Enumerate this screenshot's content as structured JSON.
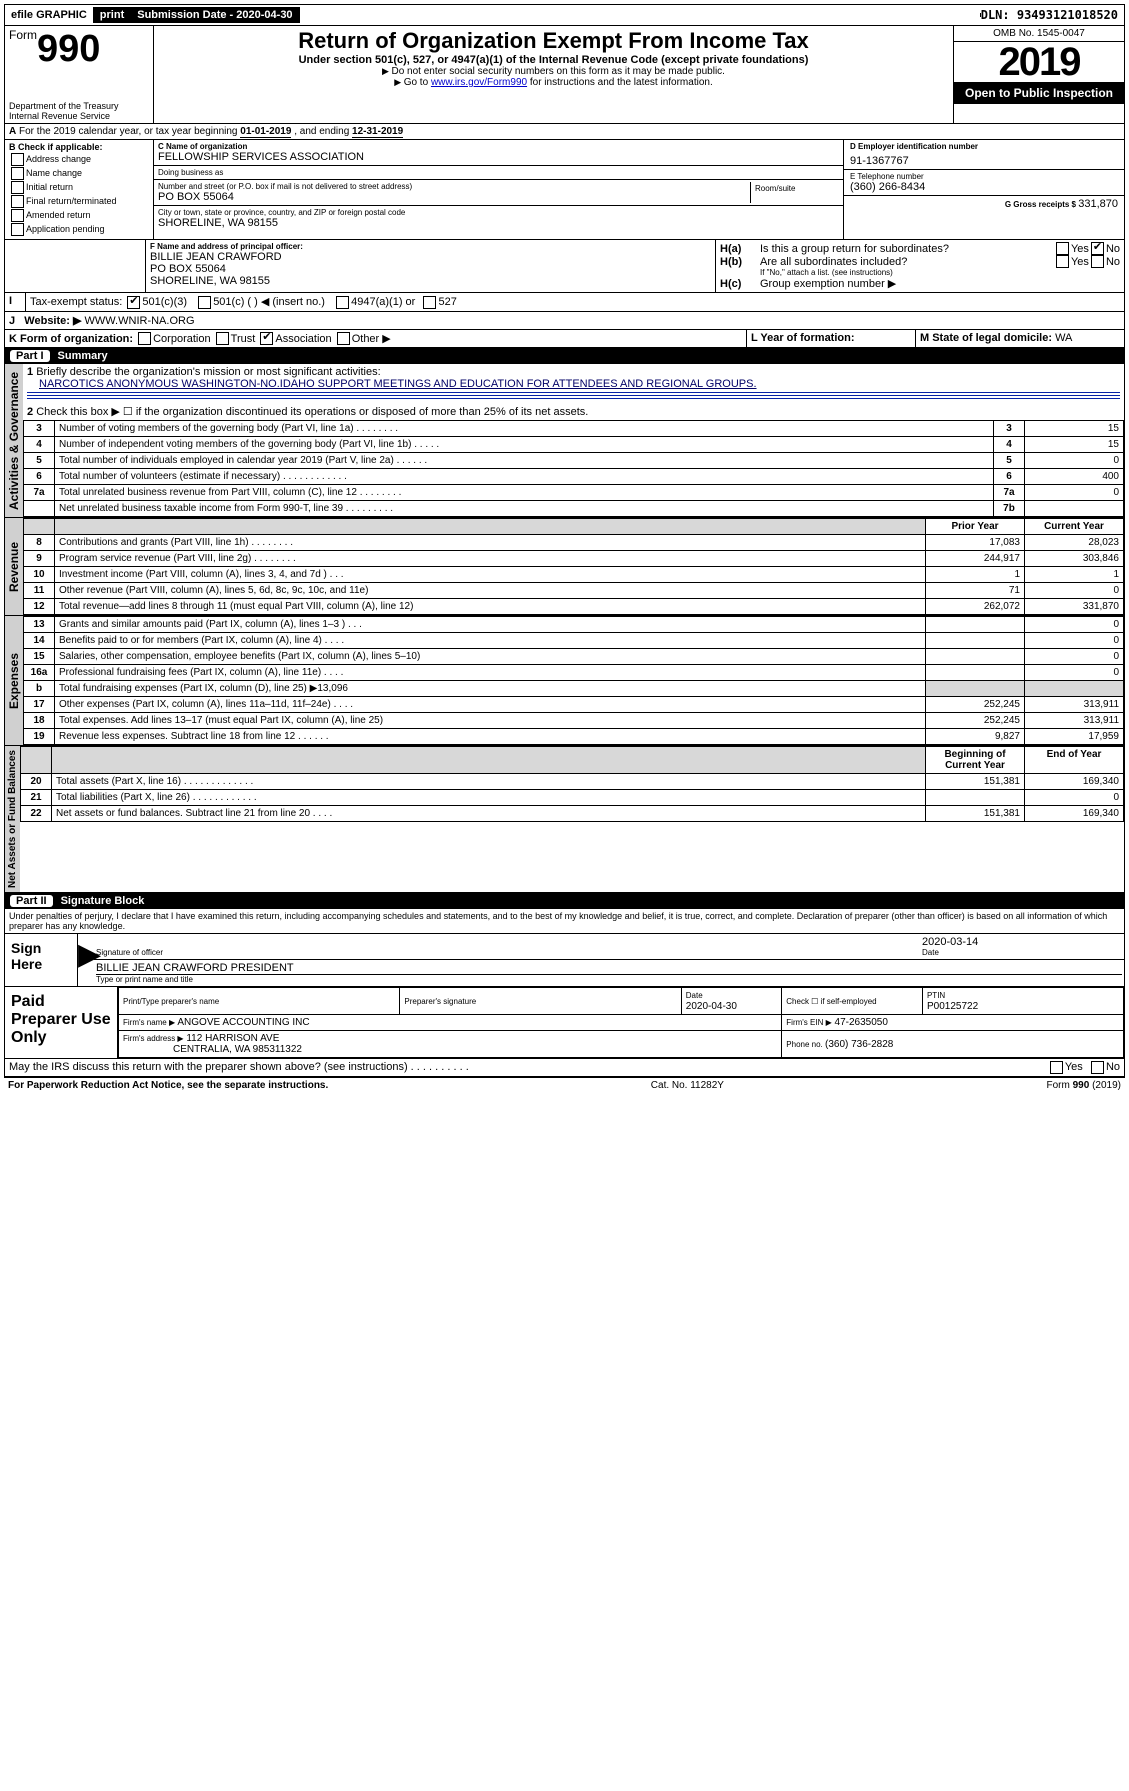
{
  "topbar": {
    "efile": "efile GRAPHIC",
    "print": "print",
    "sub_label": "Submission Date - ",
    "sub_date": "2020-04-30",
    "dln_label": "DLN: ",
    "dln": "93493121018520"
  },
  "header": {
    "form_word": "Form",
    "form_no": "990",
    "dept": "Department of the Treasury",
    "irs": "Internal Revenue Service",
    "title": "Return of Organization Exempt From Income Tax",
    "subtitle": "Under section 501(c), 527, or 4947(a)(1) of the Internal Revenue Code (except private foundations)",
    "note1": "Do not enter social security numbers on this form as it may be made public.",
    "note2_a": "Go to ",
    "note2_link": "www.irs.gov/Form990",
    "note2_b": " for instructions and the latest information.",
    "omb": "OMB No. 1545-0047",
    "year": "2019",
    "open": "Open to Public Inspection"
  },
  "lineA": {
    "text_a": "For the 2019 calendar year, or tax year beginning ",
    "begin": "01-01-2019",
    "text_b": " , and ending ",
    "end": "12-31-2019"
  },
  "B": {
    "label": "B Check if applicable:",
    "opts": [
      "Address change",
      "Name change",
      "Initial return",
      "Final return/terminated",
      "Amended return",
      "Application pending"
    ]
  },
  "C": {
    "name_label": "C Name of organization",
    "name": "FELLOWSHIP SERVICES ASSOCIATION",
    "dba_label": "Doing business as",
    "dba": "",
    "addr_label": "Number and street (or P.O. box if mail is not delivered to street address)",
    "room_label": "Room/suite",
    "addr": "PO BOX 55064",
    "city_label": "City or town, state or province, country, and ZIP or foreign postal code",
    "city": "SHORELINE, WA  98155"
  },
  "D": {
    "label": "D Employer identification number",
    "value": "91-1367767"
  },
  "E": {
    "label": "E Telephone number",
    "value": "(360) 266-8434"
  },
  "G": {
    "label": "G Gross receipts $ ",
    "value": "331,870"
  },
  "F": {
    "label": "F  Name and address of principal officer:",
    "name": "BILLIE JEAN CRAWFORD",
    "addr1": "PO BOX 55064",
    "addr2": "SHORELINE, WA  98155"
  },
  "H": {
    "a": "Is this a group return for subordinates?",
    "b": "Are all subordinates included?",
    "b_note": "If \"No,\" attach a list. (see instructions)",
    "c": "Group exemption number ▶",
    "ha_label": "H(a)",
    "hb_label": "H(b)",
    "hc_label": "H(c)",
    "yes": "Yes",
    "no": "No"
  },
  "I": {
    "label": "Tax-exempt status:",
    "opts": [
      "501(c)(3)",
      "501(c) (   ) ◀ (insert no.)",
      "4947(a)(1) or",
      "527"
    ]
  },
  "J": {
    "label": "Website: ▶",
    "value": "WWW.WNIR-NA.ORG"
  },
  "K": {
    "label": "K Form of organization:",
    "opts": [
      "Corporation",
      "Trust",
      "Association",
      "Other ▶"
    ],
    "checked": "Association"
  },
  "L": {
    "label": "L Year of formation:",
    "value": ""
  },
  "M": {
    "label": "M State of legal domicile: ",
    "value": "WA"
  },
  "part1": {
    "title": "Part I",
    "name": "Summary",
    "q1_label": "1",
    "q1": "Briefly describe the organization's mission or most significant activities:",
    "q1_val": "NARCOTICS ANONYMOUS WASHINGTON-NO.IDAHO SUPPORT MEETINGS AND EDUCATION FOR ATTENDEES AND REGIONAL GROUPS.",
    "q2_label": "2",
    "q2": "Check this box ▶ ☐  if the organization discontinued its operations or disposed of more than 25% of its net assets.",
    "lines_gov": [
      {
        "no": "3",
        "text": "Number of voting members of the governing body (Part VI, line 1a)  .    .    .    .    .    .    .    .",
        "box": "3",
        "val": "15"
      },
      {
        "no": "4",
        "text": "Number of independent voting members of the governing body (Part VI, line 1b)  .    .    .    .    .",
        "box": "4",
        "val": "15"
      },
      {
        "no": "5",
        "text": "Total number of individuals employed in calendar year 2019 (Part V, line 2a)  .    .    .    .    .    .",
        "box": "5",
        "val": "0"
      },
      {
        "no": "6",
        "text": "Total number of volunteers (estimate if necessary)  .    .    .    .    .    .    .    .    .    .    .    .",
        "box": "6",
        "val": "400"
      },
      {
        "no": "7a",
        "text": "Total unrelated business revenue from Part VIII, column (C), line 12  .    .    .    .    .    .    .    .",
        "box": "7a",
        "val": "0"
      },
      {
        "no": "",
        "text": "Net unrelated business taxable income from Form 990-T, line 39  .    .    .    .    .    .    .    .    .",
        "box": "7b",
        "val": ""
      }
    ],
    "col_prior": "Prior Year",
    "col_current": "Current Year",
    "col_begin": "Beginning of Current Year",
    "col_end": "End of Year",
    "lines_rev": [
      {
        "no": "8",
        "text": "Contributions and grants (Part VIII, line 1h)  .    .    .    .    .    .    .    .",
        "prior": "17,083",
        "curr": "28,023"
      },
      {
        "no": "9",
        "text": "Program service revenue (Part VIII, line 2g)  .    .    .    .    .    .    .    .",
        "prior": "244,917",
        "curr": "303,846"
      },
      {
        "no": "10",
        "text": "Investment income (Part VIII, column (A), lines 3, 4, and 7d )  .    .    .",
        "prior": "1",
        "curr": "1"
      },
      {
        "no": "11",
        "text": "Other revenue (Part VIII, column (A), lines 5, 6d, 8c, 9c, 10c, and 11e)",
        "prior": "71",
        "curr": "0"
      },
      {
        "no": "12",
        "text": "Total revenue—add lines 8 through 11 (must equal Part VIII, column (A), line 12)",
        "prior": "262,072",
        "curr": "331,870"
      }
    ],
    "lines_exp": [
      {
        "no": "13",
        "text": "Grants and similar amounts paid (Part IX, column (A), lines 1–3 )  .    .    .",
        "prior": "",
        "curr": "0"
      },
      {
        "no": "14",
        "text": "Benefits paid to or for members (Part IX, column (A), line 4)  .    .    .    .",
        "prior": "",
        "curr": "0"
      },
      {
        "no": "15",
        "text": "Salaries, other compensation, employee benefits (Part IX, column (A), lines 5–10)",
        "prior": "",
        "curr": "0"
      },
      {
        "no": "16a",
        "text": "Professional fundraising fees (Part IX, column (A), line 11e)  .    .    .    .",
        "prior": "",
        "curr": "0"
      },
      {
        "no": "b",
        "text": "Total fundraising expenses (Part IX, column (D), line 25) ▶13,096",
        "prior": "GREY",
        "curr": "GREY"
      },
      {
        "no": "17",
        "text": "Other expenses (Part IX, column (A), lines 11a–11d, 11f–24e)  .    .    .    .",
        "prior": "252,245",
        "curr": "313,911"
      },
      {
        "no": "18",
        "text": "Total expenses. Add lines 13–17 (must equal Part IX, column (A), line 25)",
        "prior": "252,245",
        "curr": "313,911"
      },
      {
        "no": "19",
        "text": "Revenue less expenses. Subtract line 18 from line 12  .    .    .    .    .    .",
        "prior": "9,827",
        "curr": "17,959"
      }
    ],
    "lines_net": [
      {
        "no": "20",
        "text": "Total assets (Part X, line 16)  .    .    .    .    .    .    .    .    .    .    .    .    .",
        "prior": "151,381",
        "curr": "169,340"
      },
      {
        "no": "21",
        "text": "Total liabilities (Part X, line 26)  .    .    .    .    .    .    .    .    .    .    .    .",
        "prior": "",
        "curr": "0"
      },
      {
        "no": "22",
        "text": "Net assets or fund balances. Subtract line 21 from line 20  .    .    .    .",
        "prior": "151,381",
        "curr": "169,340"
      }
    ],
    "vlabels": {
      "gov": "Activities & Governance",
      "rev": "Revenue",
      "exp": "Expenses",
      "net": "Net Assets or Fund Balances"
    }
  },
  "part2": {
    "title": "Part II",
    "name": "Signature Block",
    "jurat": "Under penalties of perjury, I declare that I have examined this return, including accompanying schedules and statements, and to the best of my knowledge and belief, it is true, correct, and complete. Declaration of preparer (other than officer) is based on all information of which preparer has any knowledge.",
    "sign_here": "Sign Here",
    "sig_of_officer": "Signature of officer",
    "date": "2020-03-14",
    "date_label": "Date",
    "officer_name": "BILLIE JEAN CRAWFORD  PRESIDENT",
    "name_title_label": "Type or print name and title",
    "paid": "Paid Preparer Use Only",
    "prep_headers": [
      "Print/Type preparer's name",
      "Preparer's signature",
      "Date",
      "Check ☐ if self-employed",
      "PTIN"
    ],
    "prep_date": "2020-04-30",
    "ptin": "P00125722",
    "firm_name_label": "Firm's name      ▶",
    "firm_name": "ANGOVE ACCOUNTING INC",
    "firm_ein_label": "Firm's EIN ▶",
    "firm_ein": "47-2635050",
    "firm_addr_label": "Firm's address ▶",
    "firm_addr1": "112 HARRISON AVE",
    "firm_addr2": "CENTRALIA, WA  985311322",
    "phone_label": "Phone no. ",
    "phone": "(360) 736-2828",
    "discuss": "May the IRS discuss this return with the preparer shown above? (see instructions)  .    .    .    .    .    .    .    .    .    .",
    "yes": "Yes",
    "no": "No"
  },
  "footer": {
    "pra": "For Paperwork Reduction Act Notice, see the separate instructions.",
    "cat": "Cat. No. 11282Y",
    "form": "Form 990 (2019)"
  }
}
